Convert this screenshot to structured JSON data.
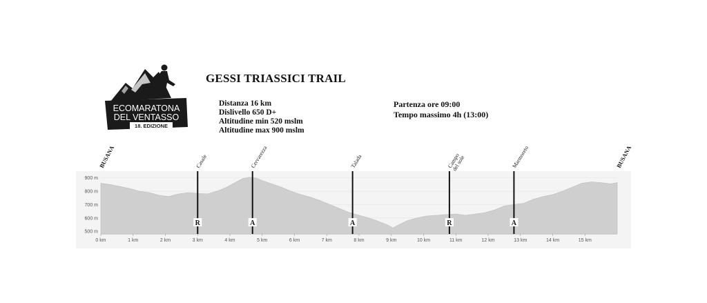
{
  "logo": {
    "line1": "ECOMARATONA",
    "line2": "DEL VENTASSO",
    "edition": "18. EDIZIONE"
  },
  "race": {
    "title": "GESSI TRIASSICI TRAIL",
    "distance": "Distanza 16 km",
    "elevation_gain": "Dislivello 650 D+",
    "alt_min": "Altitudine min 520 mslm",
    "alt_max": "Altitudine max 900 mslm",
    "start": "Partenza ore 09:00",
    "max_time": "Tempo massimo 4h (13:00)"
  },
  "chart_data": {
    "type": "area",
    "xlabel": "",
    "ylabel": "",
    "xlim": [
      0,
      16
    ],
    "ylim": [
      480,
      940
    ],
    "x_ticks": [
      "0 km",
      "1 km",
      "2 km",
      "3 km",
      "4 km",
      "5 km",
      "6 km",
      "7 km",
      "8 km",
      "9 km",
      "10 km",
      "11 km",
      "12 km",
      "13 km",
      "14 km",
      "15 km"
    ],
    "y_ticks": [
      "500 m",
      "600 m",
      "700 m",
      "800 m",
      "900 m"
    ],
    "fill_color": "#cfcfcf",
    "grid": true,
    "x": [
      0,
      0.3,
      0.6,
      0.9,
      1.2,
      1.5,
      1.8,
      2.1,
      2.4,
      2.7,
      3.0,
      3.3,
      3.6,
      3.9,
      4.2,
      4.4,
      4.6,
      4.8,
      5.0,
      5.3,
      5.6,
      5.9,
      6.2,
      6.5,
      6.8,
      7.1,
      7.4,
      7.7,
      8.0,
      8.3,
      8.6,
      8.9,
      9.05,
      9.2,
      9.5,
      9.8,
      10.1,
      10.4,
      10.7,
      11.0,
      11.3,
      11.6,
      11.9,
      12.2,
      12.5,
      12.8,
      13.1,
      13.4,
      13.7,
      14.0,
      14.3,
      14.6,
      14.9,
      15.2,
      15.5,
      15.8,
      16.0
    ],
    "y": [
      860,
      850,
      835,
      820,
      800,
      790,
      770,
      760,
      780,
      790,
      785,
      780,
      800,
      830,
      870,
      895,
      905,
      900,
      880,
      855,
      830,
      800,
      775,
      755,
      730,
      700,
      670,
      640,
      620,
      600,
      575,
      545,
      525,
      545,
      580,
      600,
      615,
      620,
      625,
      630,
      620,
      630,
      640,
      660,
      690,
      700,
      710,
      740,
      760,
      775,
      800,
      830,
      860,
      870,
      865,
      855,
      865
    ],
    "markers": [
      {
        "km": 3.0,
        "name": "Casale",
        "symbol": "R"
      },
      {
        "km": 4.7,
        "name": "Cervarezza",
        "symbol": "A"
      },
      {
        "km": 7.8,
        "name": "Talada",
        "symbol": "A"
      },
      {
        "km": 10.8,
        "name": "Campo del sole",
        "symbol": "R"
      },
      {
        "km": 12.8,
        "name": "Marmoreto",
        "symbol": "A"
      }
    ],
    "start_label": "BUSANA",
    "end_label": "BUSANA"
  }
}
